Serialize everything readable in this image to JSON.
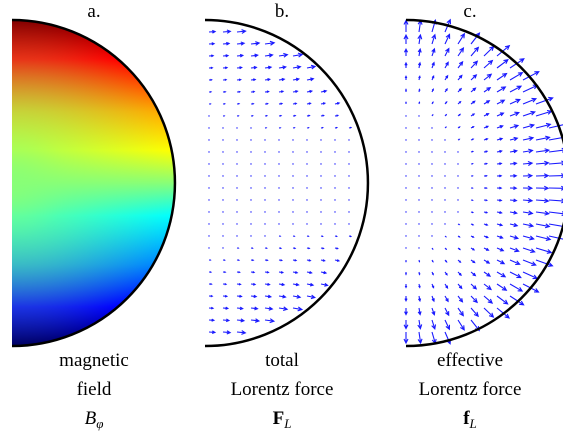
{
  "figure": {
    "panels": [
      {
        "letter": "a.",
        "caption_line1": "magnetic",
        "caption_line2": "field",
        "symbol": "B",
        "symbol_sub": "φ"
      },
      {
        "letter": "b.",
        "caption_line1": "total",
        "caption_line2": "Lorentz force",
        "symbol": "F",
        "symbol_sub": "L"
      },
      {
        "letter": "c.",
        "caption_line1": "effective",
        "caption_line2": "Lorentz force",
        "symbol": "f",
        "symbol_sub": "L"
      }
    ],
    "colors": {
      "arrows": "#1a1aff",
      "outline": "#000000",
      "colormap": [
        "#000080",
        "#0000ff",
        "#00ffff",
        "#80ff80",
        "#ffff00",
        "#ff0000",
        "#800000"
      ]
    }
  }
}
